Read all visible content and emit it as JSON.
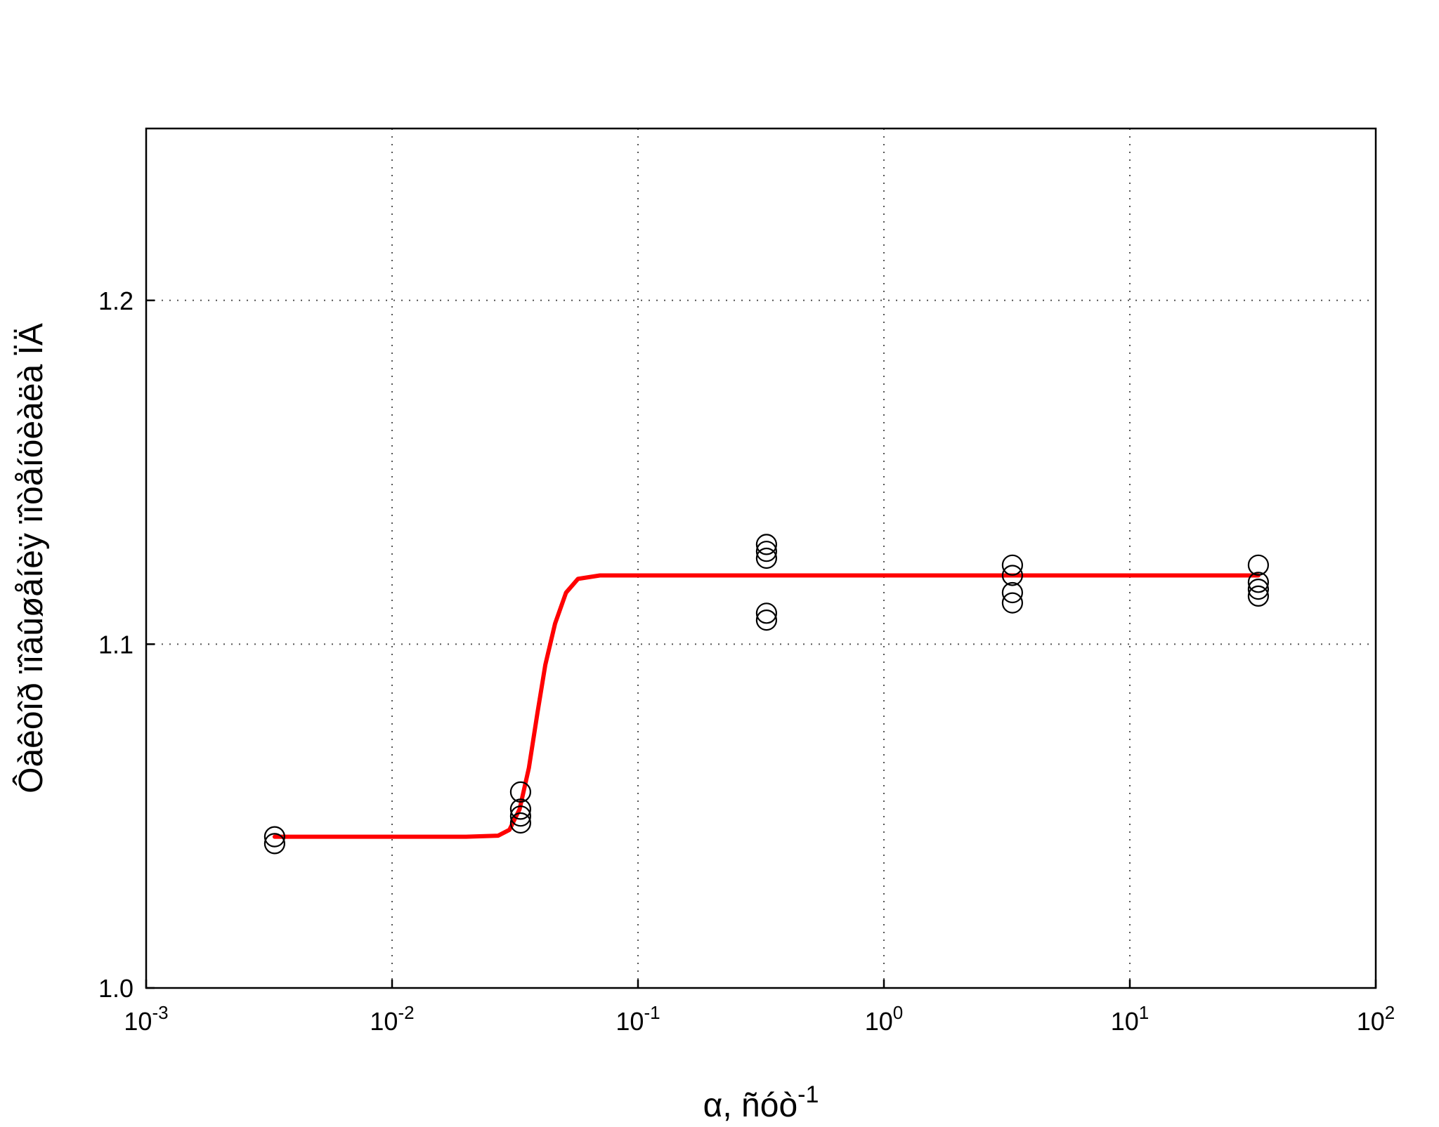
{
  "chart_data": {
    "type": "scatter",
    "title": "",
    "xlabel": "α, ñóò",
    "xlabel_sup": "-1",
    "ylabel": "Ôàêòîð ïîâûøåíèÿ ïîòåíöèàëà ÏÄ",
    "x_scale": "log",
    "xlim": [
      0.001,
      100
    ],
    "ylim": [
      1.0,
      1.25
    ],
    "grid": true,
    "legend": "none",
    "x_ticks": [
      {
        "value": 0.001,
        "base": "10",
        "exp": "-3"
      },
      {
        "value": 0.01,
        "base": "10",
        "exp": "-2"
      },
      {
        "value": 0.1,
        "base": "10",
        "exp": "-1"
      },
      {
        "value": 1,
        "base": "10",
        "exp": "0"
      },
      {
        "value": 10,
        "base": "10",
        "exp": "1"
      },
      {
        "value": 100,
        "base": "10",
        "exp": "2"
      }
    ],
    "y_ticks": [
      {
        "value": 1.0,
        "label": "1.0"
      },
      {
        "value": 1.1,
        "label": "1.1"
      },
      {
        "value": 1.2,
        "label": "1.2"
      }
    ],
    "points": [
      {
        "x": 0.00333,
        "y": 1.042
      },
      {
        "x": 0.00333,
        "y": 1.044
      },
      {
        "x": 0.0333,
        "y": 1.048
      },
      {
        "x": 0.0333,
        "y": 1.05
      },
      {
        "x": 0.0333,
        "y": 1.052
      },
      {
        "x": 0.0333,
        "y": 1.057
      },
      {
        "x": 0.333,
        "y": 1.107
      },
      {
        "x": 0.333,
        "y": 1.109
      },
      {
        "x": 0.333,
        "y": 1.125
      },
      {
        "x": 0.333,
        "y": 1.127
      },
      {
        "x": 0.333,
        "y": 1.129
      },
      {
        "x": 3.33,
        "y": 1.112
      },
      {
        "x": 3.33,
        "y": 1.115
      },
      {
        "x": 3.33,
        "y": 1.12
      },
      {
        "x": 3.33,
        "y": 1.123
      },
      {
        "x": 33.3,
        "y": 1.114
      },
      {
        "x": 33.3,
        "y": 1.116
      },
      {
        "x": 33.3,
        "y": 1.118
      },
      {
        "x": 33.3,
        "y": 1.123
      }
    ],
    "fit_curve": [
      {
        "x": 0.00333,
        "y": 1.044
      },
      {
        "x": 0.005,
        "y": 1.044
      },
      {
        "x": 0.01,
        "y": 1.044
      },
      {
        "x": 0.02,
        "y": 1.044
      },
      {
        "x": 0.027,
        "y": 1.0443
      },
      {
        "x": 0.03,
        "y": 1.046
      },
      {
        "x": 0.033,
        "y": 1.052
      },
      {
        "x": 0.036,
        "y": 1.064
      },
      {
        "x": 0.039,
        "y": 1.08
      },
      {
        "x": 0.042,
        "y": 1.094
      },
      {
        "x": 0.046,
        "y": 1.106
      },
      {
        "x": 0.051,
        "y": 1.115
      },
      {
        "x": 0.057,
        "y": 1.119
      },
      {
        "x": 0.07,
        "y": 1.12
      },
      {
        "x": 0.2,
        "y": 1.12
      },
      {
        "x": 1,
        "y": 1.12
      },
      {
        "x": 10,
        "y": 1.12
      },
      {
        "x": 33.3,
        "y": 1.12
      }
    ],
    "colors": {
      "fit": "#ff0000",
      "markers": "#000000",
      "axes": "#000000",
      "grid": "#555555"
    }
  }
}
